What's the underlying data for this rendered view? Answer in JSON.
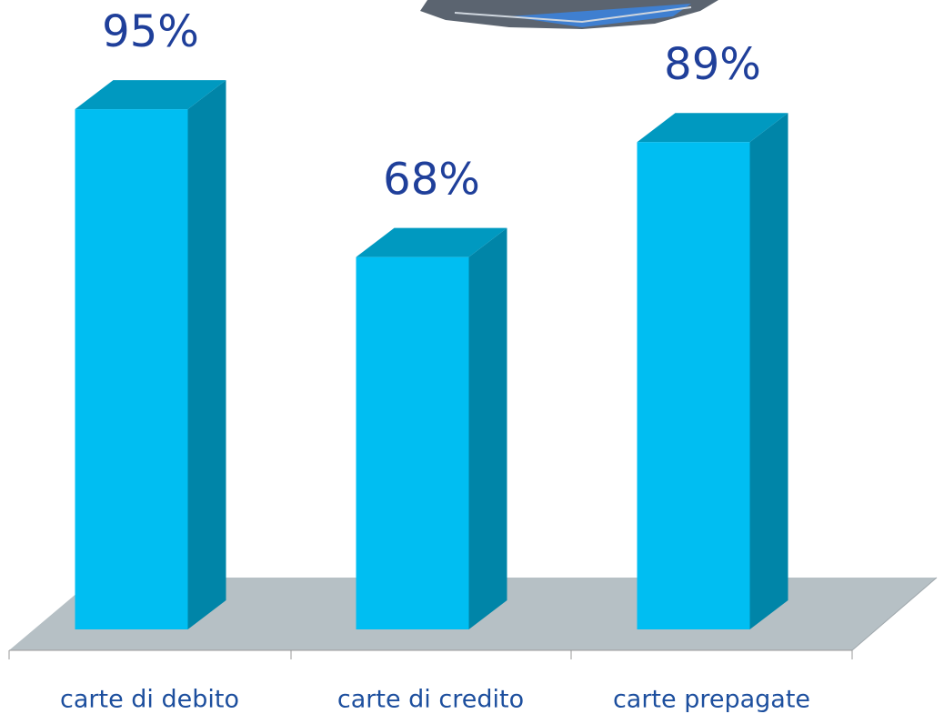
{
  "chart_data": {
    "type": "bar3d",
    "categories": [
      "carte di debito",
      "carte di credito",
      "carte prepagate"
    ],
    "values": [
      95,
      68,
      89
    ],
    "value_labels": [
      "95%",
      "68%",
      "89%"
    ],
    "color": "#00bef2"
  }
}
